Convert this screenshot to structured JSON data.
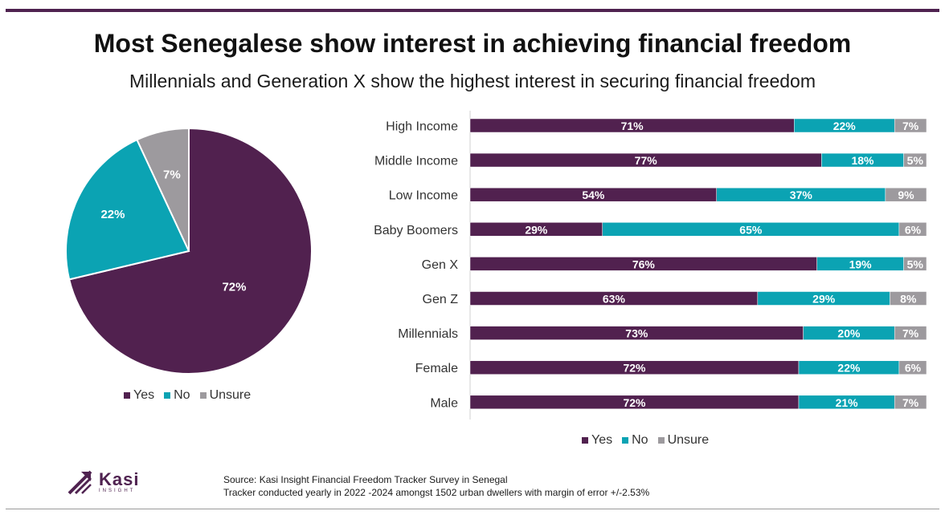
{
  "title": "Most Senegalese show interest in achieving financial freedom",
  "subtitle": "Millennials and Generation X show the highest interest in securing financial freedom",
  "colors": {
    "yes": "#51214f",
    "no": "#0ba3b3",
    "unsure": "#9d9a9e",
    "accent": "#4f2250"
  },
  "chart_data": [
    {
      "type": "pie",
      "slices": [
        {
          "name": "Yes",
          "value": 72,
          "label": "72%"
        },
        {
          "name": "No",
          "value": 22,
          "label": "22%"
        },
        {
          "name": "Unsure",
          "value": 7,
          "label": "7%"
        }
      ],
      "legend": [
        "Yes",
        "No",
        "Unsure"
      ],
      "legend_position": "bottom"
    },
    {
      "type": "bar",
      "orientation": "horizontal",
      "stacked": true,
      "categories": [
        "High Income",
        "Middle Income",
        "Low Income",
        "Baby Boomers",
        "Gen X",
        "Gen Z",
        "Millennials",
        "Female",
        "Male"
      ],
      "series": [
        {
          "name": "Yes",
          "values": [
            71,
            77,
            54,
            29,
            76,
            63,
            73,
            72,
            72
          ]
        },
        {
          "name": "No",
          "values": [
            22,
            18,
            37,
            65,
            19,
            29,
            20,
            22,
            21
          ]
        },
        {
          "name": "Unsure",
          "values": [
            7,
            5,
            9,
            6,
            5,
            8,
            7,
            6,
            7
          ]
        }
      ],
      "legend": [
        "Yes",
        "No",
        "Unsure"
      ],
      "legend_position": "bottom"
    }
  ],
  "legend_labels": {
    "yes": "Yes",
    "no": "No",
    "unsure": "Unsure"
  },
  "logo": {
    "word": "Kasi",
    "sub": "INSIGHT"
  },
  "source": {
    "line1": "Source: Kasi Insight Financial Freedom Tracker Survey in Senegal",
    "line2": "Tracker conducted yearly in 2022 -2024 amongst 1502 urban dwellers with margin of error +/-2.53%"
  }
}
